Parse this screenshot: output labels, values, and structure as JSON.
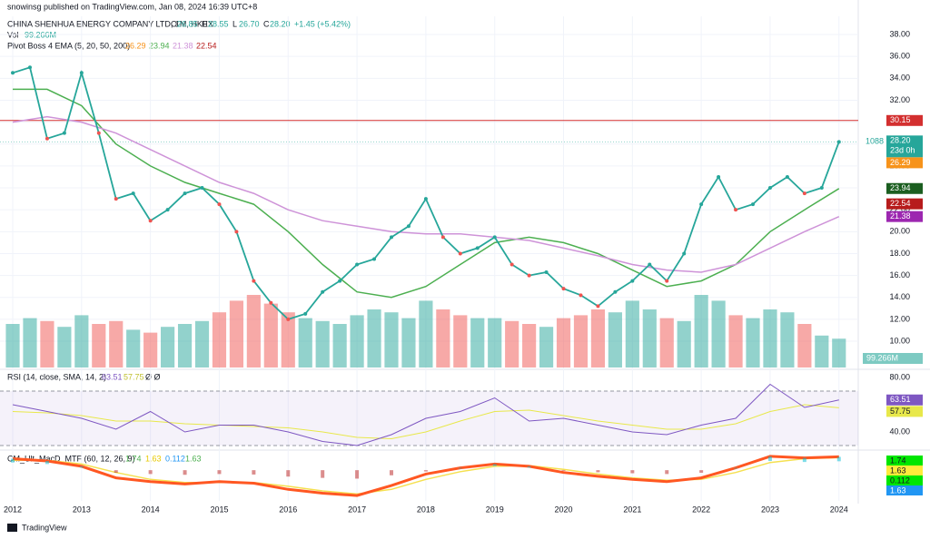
{
  "header": "snowinsg published on TradingView.com, Jan 08, 2024 16:39 UTC+8",
  "brand": "TradingView",
  "chart_data": {
    "type": "line",
    "title": "CHINA SHENHUA ENERGY COMPANY LTD, 1M, HKEX",
    "ohlc": [
      {
        "label": "O",
        "value": 26.85
      },
      {
        "label": "H",
        "value": 28.55
      },
      {
        "label": "L",
        "value": 26.7
      },
      {
        "label": "C",
        "value": 28.2
      }
    ],
    "ohlc_printed": [
      "26.85",
      "28.55",
      "26.70",
      "28.20"
    ],
    "change": "+1.45 (+5.42%)",
    "up_color": "#26a69a",
    "down_color": "#ef5350",
    "x": [
      2012,
      2012.25,
      2012.5,
      2012.75,
      2013,
      2013.25,
      2013.5,
      2013.75,
      2014,
      2014.25,
      2014.5,
      2014.75,
      2015,
      2015.25,
      2015.5,
      2015.75,
      2016,
      2016.25,
      2016.5,
      2016.75,
      2017,
      2017.25,
      2017.5,
      2017.75,
      2018,
      2018.25,
      2018.5,
      2018.75,
      2019,
      2019.25,
      2019.5,
      2019.75,
      2020,
      2020.25,
      2020.5,
      2020.75,
      2021,
      2021.25,
      2021.5,
      2021.75,
      2022,
      2022.25,
      2022.5,
      2022.75,
      2023,
      2023.25,
      2023.5,
      2023.75,
      2024
    ],
    "close": [
      34.5,
      35,
      28.5,
      29,
      34.5,
      29,
      23,
      23.5,
      21,
      22,
      23.5,
      24,
      22.5,
      20,
      15.5,
      13.5,
      12,
      12.5,
      14.5,
      15.5,
      17,
      17.5,
      19.5,
      20.5,
      23,
      19.5,
      18,
      18.5,
      19.5,
      17,
      16,
      16.3,
      14.8,
      14.2,
      13.2,
      14.5,
      15.5,
      17,
      15.5,
      18,
      22.5,
      25,
      22,
      22.5,
      24,
      25,
      23.5,
      24,
      28.2
    ],
    "volume": {
      "label": "Vol",
      "value_label": "99.266M",
      "values": [
        150,
        170,
        160,
        140,
        180,
        150,
        160,
        130,
        120,
        140,
        150,
        160,
        190,
        230,
        250,
        220,
        190,
        170,
        160,
        150,
        180,
        200,
        190,
        170,
        230,
        200,
        180,
        170,
        170,
        160,
        150,
        140,
        170,
        180,
        200,
        190,
        230,
        200,
        170,
        160,
        250,
        230,
        180,
        170,
        200,
        190,
        150,
        110,
        99.266
      ]
    },
    "ema": {
      "label": "Pivot Boss 4 EMA (5, 20, 50, 200)",
      "x": [
        2012,
        2012.5,
        2013,
        2013.5,
        2014,
        2014.5,
        2015,
        2015.5,
        2016,
        2016.5,
        2017,
        2017.5,
        2018,
        2018.5,
        2019,
        2019.5,
        2020,
        2020.5,
        2021,
        2021.5,
        2022,
        2022.5,
        2023,
        2023.5,
        2024
      ],
      "lines": [
        {
          "color": "#f7931a",
          "last": 26.29
        },
        {
          "color": "#4caf50",
          "tag_color": "#1b5e20",
          "last": 23.94,
          "values": [
            33,
            33,
            31.5,
            28,
            26,
            24.5,
            23.5,
            22.5,
            20,
            17,
            14.5,
            14,
            15,
            17,
            19,
            19.5,
            19,
            18,
            16.5,
            15,
            15.5,
            17,
            20,
            22,
            23.94
          ]
        },
        {
          "color": "#ce93d8",
          "tag_color": "#9c27b0",
          "last": 21.38,
          "values": [
            30,
            30.5,
            30,
            29,
            27.5,
            26,
            24.5,
            23.5,
            22,
            21,
            20.5,
            20,
            19.8,
            19.8,
            19.5,
            19.2,
            18.5,
            17.8,
            17,
            16.5,
            16.3,
            17,
            18.5,
            20,
            21.38
          ]
        },
        {
          "color": "#b71c1c",
          "last": 22.54
        }
      ]
    },
    "resistance": 30.15,
    "resistance_color": "#d32f2f",
    "last_note": "1088",
    "countdown": "23d 0h",
    "ylim": [
      7.6,
      39.66
    ],
    "yticks": [
      10,
      12,
      14,
      16,
      18,
      20,
      22,
      24,
      26,
      28,
      30,
      32,
      34,
      36,
      38
    ],
    "ytick_labels": [
      "10.00",
      "12.00",
      "14.00",
      "16.00",
      "18.00",
      "20.00",
      "22.00",
      "24.00",
      "26.00",
      "28.00",
      "30.00",
      "32.00",
      "34.00",
      "36.00",
      "38.00"
    ],
    "xlim": [
      2011.815,
      2024.28
    ],
    "xticks": [
      2012,
      2013,
      2014,
      2015,
      2016,
      2017,
      2018,
      2019,
      2020,
      2021,
      2022,
      2023,
      2024
    ],
    "rsi": {
      "label": "RSI (14, close, SMA, 14, 2)",
      "last": 63.51,
      "ma_last": 57.75,
      "extra": "Ø Ø",
      "color": "#7e57c2",
      "ma_color": "#e8e84a",
      "values": [
        60,
        55,
        50,
        42,
        55,
        40,
        45,
        45,
        40,
        33,
        30,
        38,
        50,
        55,
        65,
        48,
        50,
        45,
        40,
        38,
        45,
        50,
        75,
        58,
        63.51
      ],
      "ma_values": [
        55,
        54,
        52,
        48,
        48,
        46,
        45,
        44,
        43,
        40,
        36,
        35,
        40,
        48,
        55,
        56,
        52,
        48,
        45,
        42,
        42,
        46,
        55,
        60,
        57.75
      ],
      "ylim": [
        28.7,
        84
      ],
      "yticks": [
        {
          "value": 40,
          "label": "40.00"
        },
        {
          "value": 80,
          "label": "80.00"
        }
      ],
      "bands": [
        30,
        70
      ]
    },
    "macd": {
      "label": "CM_Ult_MacD_MTF (60, 12, 26, 9)",
      "readouts": [
        1.74,
        1.63,
        0.112,
        1.63
      ],
      "values": [
        1.5,
        1.2,
        0.5,
        -1,
        -1.5,
        -1.8,
        -1.5,
        -1.7,
        -2.5,
        -3,
        -3.3,
        -2,
        -0.5,
        0.3,
        0.8,
        0.5,
        -0.3,
        -0.8,
        -1.2,
        -1.5,
        -1,
        0.3,
        1.8,
        1.6,
        1.74
      ],
      "signal": [
        1.3,
        1.3,
        0.8,
        -0.3,
        -1.2,
        -1.6,
        -1.6,
        -1.6,
        -2.1,
        -2.7,
        -3.1,
        -2.5,
        -1.2,
        -0.2,
        0.5,
        0.6,
        0.1,
        -0.5,
        -1,
        -1.3,
        -1.2,
        -0.3,
        1,
        1.5,
        1.63
      ],
      "ylim": [
        -4,
        2.5
      ]
    }
  }
}
